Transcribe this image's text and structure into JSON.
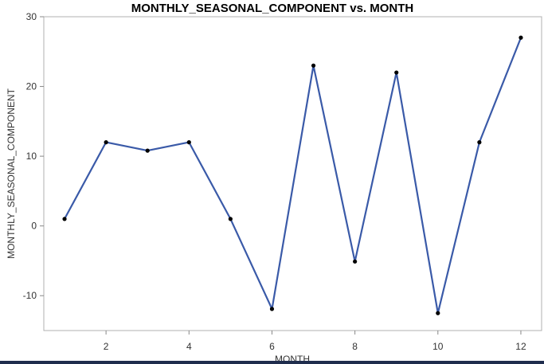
{
  "chart_data": {
    "type": "line",
    "title": "MONTHLY_SEASONAL_COMPONENT vs. MONTH",
    "xlabel": "MONTH",
    "ylabel": "MONTHLY_SEASONAL_COMPONENT",
    "x": [
      1,
      2,
      3,
      4,
      5,
      6,
      7,
      8,
      9,
      10,
      11,
      12
    ],
    "series": [
      {
        "values": [
          1,
          12,
          10.8,
          12,
          1,
          -11.9,
          23,
          -5.1,
          22,
          -12.5,
          12,
          27
        ],
        "color": "#3a5aa8"
      }
    ],
    "xlim": [
      0.5,
      12.5
    ],
    "ylim": [
      -15,
      30
    ],
    "xticks": [
      2,
      4,
      6,
      8,
      10,
      12
    ],
    "yticks": [
      -10,
      0,
      10,
      20,
      30
    ],
    "xtick_labels": [
      "2",
      "4",
      "6",
      "8",
      "10",
      "12"
    ],
    "ytick_labels": [
      "-10",
      "0",
      "10",
      "20",
      "30"
    ],
    "grid": false,
    "markers": true,
    "marker_color": "#000000"
  }
}
